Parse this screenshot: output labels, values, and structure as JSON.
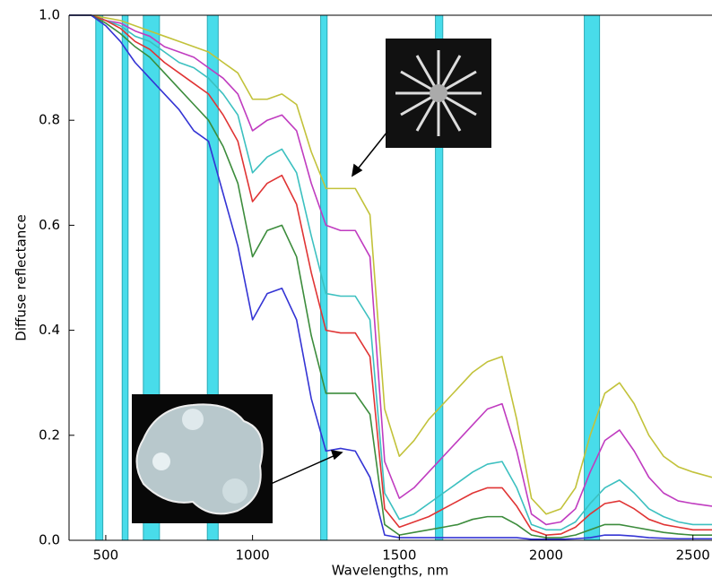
{
  "chart_data": {
    "type": "line",
    "xlabel": "Wavelengths, nm",
    "ylabel": "Diffuse reflectance",
    "x": [
      375,
      450,
      500,
      550,
      600,
      650,
      700,
      750,
      800,
      850,
      900,
      950,
      1000,
      1050,
      1100,
      1150,
      1200,
      1250,
      1300,
      1350,
      1400,
      1450,
      1500,
      1550,
      1600,
      1650,
      1700,
      1750,
      1800,
      1850,
      1900,
      1950,
      2000,
      2050,
      2100,
      2150,
      2200,
      2250,
      2300,
      2350,
      2400,
      2450,
      2500,
      2565
    ],
    "series": [
      {
        "color": "#c2c23a",
        "values": [
          1,
          1,
          0.995,
          0.99,
          0.98,
          0.97,
          0.96,
          0.95,
          0.94,
          0.93,
          0.91,
          0.89,
          0.84,
          0.84,
          0.85,
          0.83,
          0.74,
          0.67,
          0.67,
          0.67,
          0.62,
          0.25,
          0.16,
          0.19,
          0.23,
          0.26,
          0.29,
          0.32,
          0.34,
          0.35,
          0.23,
          0.08,
          0.05,
          0.06,
          0.1,
          0.2,
          0.28,
          0.3,
          0.26,
          0.2,
          0.16,
          0.14,
          0.13,
          0.12
        ]
      },
      {
        "color": "#c03cc0",
        "values": [
          1,
          1,
          0.99,
          0.985,
          0.97,
          0.96,
          0.94,
          0.93,
          0.92,
          0.9,
          0.88,
          0.85,
          0.78,
          0.8,
          0.81,
          0.78,
          0.68,
          0.6,
          0.59,
          0.59,
          0.54,
          0.15,
          0.08,
          0.1,
          0.13,
          0.16,
          0.19,
          0.22,
          0.25,
          0.26,
          0.17,
          0.05,
          0.03,
          0.035,
          0.06,
          0.13,
          0.19,
          0.21,
          0.17,
          0.12,
          0.09,
          0.075,
          0.07,
          0.065
        ]
      },
      {
        "color": "#3cc0c0",
        "values": [
          1,
          1,
          0.99,
          0.98,
          0.96,
          0.95,
          0.93,
          0.91,
          0.9,
          0.88,
          0.85,
          0.81,
          0.7,
          0.73,
          0.745,
          0.7,
          0.58,
          0.47,
          0.465,
          0.465,
          0.42,
          0.09,
          0.04,
          0.05,
          0.07,
          0.09,
          0.11,
          0.13,
          0.145,
          0.15,
          0.1,
          0.03,
          0.02,
          0.02,
          0.035,
          0.07,
          0.1,
          0.115,
          0.09,
          0.06,
          0.045,
          0.035,
          0.03,
          0.03
        ]
      },
      {
        "color": "#e03434",
        "values": [
          1,
          1,
          0.99,
          0.975,
          0.95,
          0.935,
          0.91,
          0.89,
          0.87,
          0.85,
          0.81,
          0.76,
          0.645,
          0.68,
          0.695,
          0.64,
          0.51,
          0.4,
          0.395,
          0.395,
          0.35,
          0.06,
          0.025,
          0.035,
          0.045,
          0.06,
          0.075,
          0.09,
          0.1,
          0.1,
          0.065,
          0.02,
          0.01,
          0.012,
          0.025,
          0.05,
          0.07,
          0.075,
          0.06,
          0.04,
          0.03,
          0.025,
          0.02,
          0.02
        ]
      },
      {
        "color": "#3c8c3c",
        "values": [
          1,
          1,
          0.985,
          0.965,
          0.94,
          0.92,
          0.89,
          0.86,
          0.83,
          0.8,
          0.75,
          0.68,
          0.54,
          0.59,
          0.6,
          0.54,
          0.39,
          0.28,
          0.28,
          0.28,
          0.24,
          0.03,
          0.01,
          0.015,
          0.02,
          0.025,
          0.03,
          0.04,
          0.045,
          0.045,
          0.03,
          0.01,
          0.005,
          0.005,
          0.01,
          0.02,
          0.03,
          0.03,
          0.025,
          0.02,
          0.015,
          0.012,
          0.01,
          0.01
        ]
      },
      {
        "color": "#3434d4",
        "values": [
          1,
          1,
          0.98,
          0.95,
          0.91,
          0.88,
          0.85,
          0.82,
          0.78,
          0.76,
          0.66,
          0.56,
          0.42,
          0.47,
          0.48,
          0.42,
          0.27,
          0.17,
          0.175,
          0.17,
          0.12,
          0.01,
          0.005,
          0.005,
          0.005,
          0.005,
          0.005,
          0.005,
          0.005,
          0.005,
          0.005,
          0.002,
          0.002,
          0.002,
          0.003,
          0.005,
          0.01,
          0.01,
          0.008,
          0.005,
          0.004,
          0.003,
          0.003,
          0.003
        ]
      }
    ],
    "bands": [
      [
        466,
        490
      ],
      [
        556,
        576
      ],
      [
        628,
        683
      ],
      [
        846,
        883
      ],
      [
        1232,
        1254
      ],
      [
        1623,
        1648
      ],
      [
        2130,
        2182
      ]
    ],
    "band_color": "#48dcea",
    "xlim": [
      375,
      2565
    ],
    "ylim": [
      0,
      1
    ],
    "xticks": [
      500,
      1000,
      1500,
      2000,
      2500
    ],
    "yticks": [
      {
        "value": 0,
        "label": "0.0"
      },
      0.2,
      0.4,
      0.6,
      0.8,
      {
        "value": 1,
        "label": "1.0"
      }
    ]
  }
}
